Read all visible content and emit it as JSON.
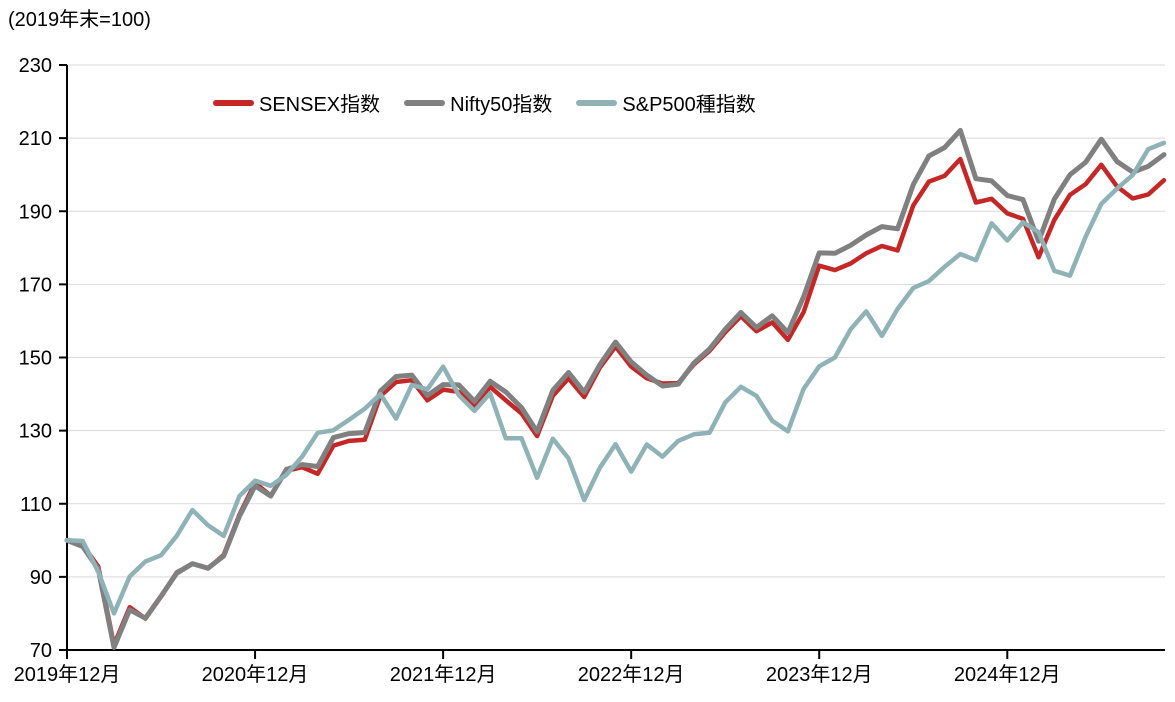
{
  "title": "(2019年末=100)",
  "legend": {
    "items": [
      {
        "label": "SENSEX指数",
        "color": "#C52727"
      },
      {
        "label": "Nifty50指数",
        "color": "#808080"
      },
      {
        "label": "S&P500種指数",
        "color": "#8FB2B7"
      }
    ]
  },
  "axes": {
    "y_ticks": [
      230,
      210,
      190,
      170,
      150,
      130,
      110,
      90,
      70
    ],
    "x_ticks": [
      "2019年12月",
      "2020年12月",
      "2021年12月",
      "2022年12月",
      "2023年12月",
      "2024年12月"
    ]
  },
  "colors": {
    "gridline": "#D9D9D9",
    "axis": "#000000",
    "text": "#000000"
  },
  "chart_data": {
    "type": "line",
    "title": "(2019年末=100)",
    "x_unit": "month",
    "x_start": "2019-12",
    "x_end": "2025-10",
    "x_tick_labels": [
      "2019年12月",
      "2020年12月",
      "2021年12月",
      "2022年12月",
      "2023年12月",
      "2024年12月"
    ],
    "x_tick_interval_months": 12,
    "ylim": [
      70,
      230
    ],
    "y_tick_step": 20,
    "grid": "horizontal",
    "legend_position": "top",
    "series": [
      {
        "name": "SENSEX指数",
        "color": "#C52727",
        "values": [
          100,
          98.7,
          92.8,
          71.4,
          81.7,
          78.6,
          84.6,
          91.2,
          93.6,
          92.3,
          96.0,
          107.0,
          115.7,
          112.2,
          119.0,
          120.0,
          118.2,
          125.9,
          127.2,
          127.5,
          139.5,
          143.3,
          143.8,
          138.3,
          141.2,
          140.6,
          136.3,
          142.0,
          138.3,
          134.7,
          128.5,
          139.5,
          144.3,
          139.2,
          147.2,
          153.0,
          147.5,
          144.3,
          142.9,
          143.0,
          148.1,
          151.8,
          156.9,
          161.3,
          157.2,
          159.6,
          154.8,
          162.4,
          175.1,
          173.9,
          175.7,
          178.5,
          180.5,
          179.3,
          191.6,
          198.1,
          199.7,
          204.3,
          192.4,
          193.4,
          189.4,
          187.9,
          177.4,
          187.6,
          194.5,
          197.4,
          202.7,
          196.8,
          193.5,
          194.6,
          198.5
        ]
      },
      {
        "name": "Nifty50指数",
        "color": "#808080",
        "values": [
          100,
          98.3,
          92.1,
          70.7,
          81.0,
          78.7,
          84.7,
          91.0,
          93.6,
          92.4,
          95.7,
          106.6,
          114.9,
          112.1,
          119.4,
          120.7,
          120.2,
          128.1,
          129.2,
          129.5,
          140.8,
          144.8,
          145.2,
          139.6,
          142.6,
          142.5,
          138.0,
          143.5,
          140.6,
          136.3,
          129.7,
          141.0,
          145.9,
          140.5,
          148.0,
          154.2,
          148.8,
          145.2,
          142.2,
          142.7,
          148.5,
          152.3,
          157.7,
          162.3,
          158.2,
          161.4,
          156.8,
          166.6,
          178.6,
          178.5,
          180.7,
          183.5,
          185.8,
          185.2,
          197.3,
          205.1,
          207.4,
          212.1,
          198.9,
          198.3,
          194.3,
          193.2,
          181.8,
          193.3,
          200.0,
          203.4,
          209.7,
          203.6,
          200.7,
          202.3,
          205.5
        ]
      },
      {
        "name": "S&P500種指数",
        "color": "#8FB2B7",
        "values": [
          100,
          99.8,
          91.4,
          80.0,
          90.1,
          94.2,
          95.9,
          101.2,
          108.3,
          104.1,
          101.2,
          112.1,
          116.3,
          114.9,
          117.9,
          122.9,
          129.4,
          130.1,
          133.0,
          136.0,
          140.0,
          133.3,
          142.5,
          141.3,
          147.5,
          139.7,
          135.4,
          140.2,
          127.9,
          127.9,
          117.1,
          127.8,
          122.4,
          111.0,
          119.8,
          126.3,
          118.8,
          126.2,
          122.9,
          127.2,
          129.0,
          129.4,
          137.7,
          142.0,
          139.5,
          132.7,
          129.8,
          141.4,
          147.6,
          150.0,
          157.7,
          162.6,
          155.9,
          163.3,
          169.0,
          170.9,
          174.8,
          178.3,
          176.6,
          186.7,
          182.0,
          187.0,
          184.3,
          173.7,
          172.4,
          183.0,
          192.0,
          196.2,
          199.9,
          207.0,
          208.7
        ]
      }
    ]
  }
}
